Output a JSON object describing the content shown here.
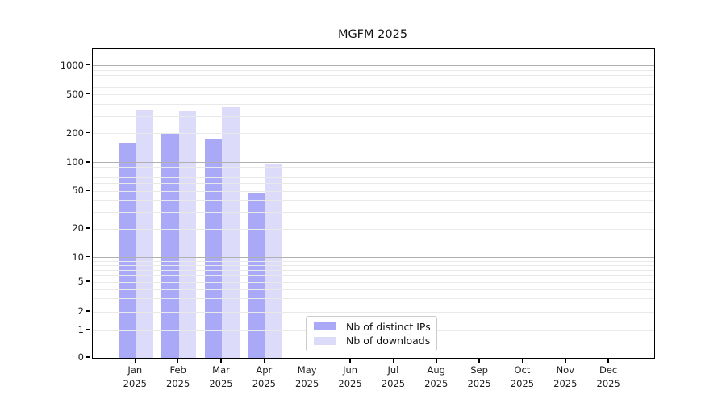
{
  "title": "MGFM 2025",
  "chart_data": {
    "type": "bar",
    "title": "MGFM 2025",
    "yscale": "symlog",
    "grid": "on",
    "legend_position": "bottom-center-inside",
    "categories": [
      "Jan",
      "Feb",
      "Mar",
      "Apr",
      "May",
      "Jun",
      "Jul",
      "Aug",
      "Sep",
      "Oct",
      "Nov",
      "Dec"
    ],
    "year": "2025",
    "series": [
      {
        "name": "Nb of distinct IPs",
        "color": "#a9a9f8",
        "values": [
          160,
          200,
          175,
          47,
          0,
          0,
          0,
          0,
          0,
          0,
          0,
          0
        ]
      },
      {
        "name": "Nb of downloads",
        "color": "#dcdcfa",
        "values": [
          350,
          340,
          370,
          97,
          0,
          0,
          0,
          0,
          0,
          0,
          0,
          0
        ]
      }
    ],
    "yticks": [
      0,
      1,
      2,
      5,
      10,
      20,
      50,
      100,
      200,
      500,
      1000
    ],
    "ylim": [
      0,
      1400
    ]
  },
  "colors": {
    "major_grid": "#b0b0b0",
    "minor_grid": "#e9e9e9",
    "axis": "#000000",
    "text": "#1c1c1c",
    "legend_border": "#cccccc"
  }
}
